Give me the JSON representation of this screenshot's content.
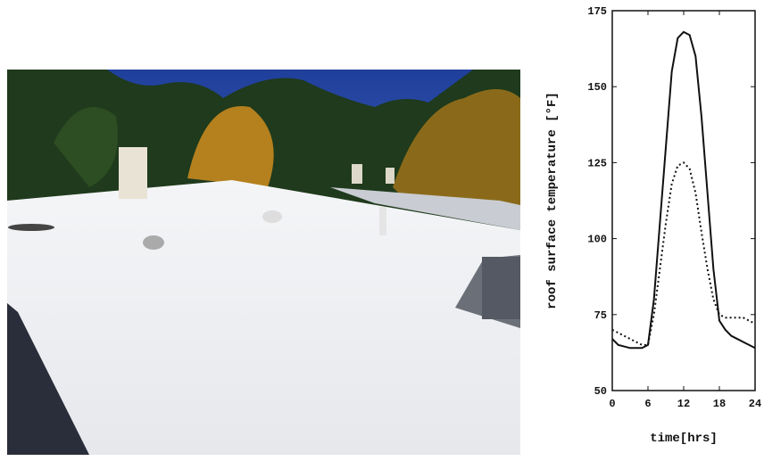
{
  "chart_data": {
    "type": "line",
    "xlabel": "time[hrs]",
    "ylabel": "roof surface temperature [°F]",
    "x": [
      0,
      1,
      2,
      3,
      4,
      5,
      6,
      7,
      8,
      9,
      10,
      11,
      12,
      13,
      14,
      15,
      16,
      17,
      18,
      19,
      20,
      21,
      22,
      23,
      24
    ],
    "series": [
      {
        "color": "#111111",
        "dash": "solid",
        "values": [
          67,
          65,
          64.5,
          64,
          64,
          64,
          65,
          80,
          105,
          130,
          155,
          166,
          168,
          167,
          160,
          140,
          115,
          90,
          73,
          70,
          68,
          67,
          66,
          65,
          64
        ]
      },
      {
        "color": "#111111",
        "dash": "dotted",
        "values": [
          70,
          69,
          68,
          67,
          66,
          65,
          65,
          75,
          90,
          105,
          118,
          124,
          125,
          123,
          115,
          102,
          90,
          80,
          75,
          74,
          74,
          74,
          74,
          73,
          72
        ]
      }
    ],
    "xlim": [
      0,
      24
    ],
    "ylim": [
      50,
      175
    ],
    "xticks": [
      0,
      6,
      12,
      18,
      24
    ],
    "yticks": [
      50,
      75,
      100,
      125,
      150,
      175
    ]
  }
}
